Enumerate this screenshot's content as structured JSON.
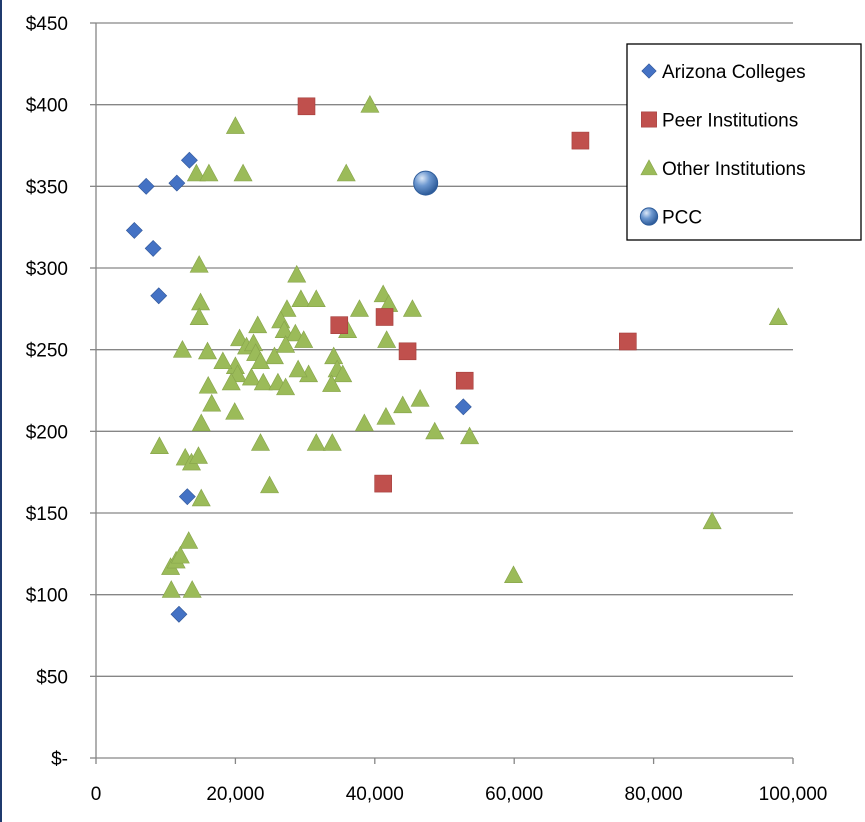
{
  "chart_data": {
    "type": "scatter",
    "title": "",
    "xlabel": "",
    "ylabel": "",
    "xlim": [
      0,
      100000
    ],
    "ylim": [
      0,
      450
    ],
    "x_ticks": [
      0,
      20000,
      40000,
      60000,
      80000,
      100000
    ],
    "x_tick_labels": [
      "0",
      "20,000",
      "40,000",
      "60,000",
      "80,000",
      "100,000"
    ],
    "y_ticks": [
      0,
      50,
      100,
      150,
      200,
      250,
      300,
      350,
      400,
      450
    ],
    "y_tick_labels": [
      "$-",
      "$50",
      "$100",
      "$150",
      "$200",
      "$250",
      "$300",
      "$350",
      "$400",
      "$450"
    ],
    "grid": "horizontal",
    "legend_position": "top-right",
    "series": [
      {
        "name": "Arizona Colleges",
        "marker": "diamond",
        "color": "#4472c4",
        "points": [
          [
            5500,
            323
          ],
          [
            7200,
            350
          ],
          [
            8200,
            312
          ],
          [
            9000,
            283
          ],
          [
            11600,
            352
          ],
          [
            13400,
            366
          ],
          [
            13100,
            160
          ],
          [
            11900,
            88
          ],
          [
            52700,
            215
          ]
        ]
      },
      {
        "name": "Peer Institutions",
        "marker": "square",
        "color": "#c0504d",
        "points": [
          [
            30200,
            399
          ],
          [
            69500,
            378
          ],
          [
            34900,
            265
          ],
          [
            41400,
            270
          ],
          [
            44700,
            249
          ],
          [
            76300,
            255
          ],
          [
            52900,
            231
          ],
          [
            41200,
            168
          ]
        ]
      },
      {
        "name": "Other Institutions",
        "marker": "triangle",
        "color": "#9bbb59",
        "points": [
          [
            20000,
            387
          ],
          [
            39300,
            400
          ],
          [
            14400,
            358
          ],
          [
            16200,
            358
          ],
          [
            21100,
            358
          ],
          [
            35900,
            358
          ],
          [
            14800,
            302
          ],
          [
            28800,
            296
          ],
          [
            15000,
            279
          ],
          [
            14800,
            270
          ],
          [
            29400,
            281
          ],
          [
            31600,
            281
          ],
          [
            27400,
            275
          ],
          [
            37800,
            275
          ],
          [
            41200,
            284
          ],
          [
            42000,
            278
          ],
          [
            45400,
            275
          ],
          [
            23200,
            265
          ],
          [
            26500,
            268
          ],
          [
            27000,
            262
          ],
          [
            28600,
            260
          ],
          [
            29800,
            256
          ],
          [
            36100,
            262
          ],
          [
            41700,
            256
          ],
          [
            20600,
            257
          ],
          [
            21600,
            252
          ],
          [
            22600,
            254
          ],
          [
            12400,
            250
          ],
          [
            16000,
            249
          ],
          [
            22900,
            248
          ],
          [
            25600,
            246
          ],
          [
            20000,
            240
          ],
          [
            18200,
            243
          ],
          [
            23600,
            243
          ],
          [
            27200,
            253
          ],
          [
            34100,
            246
          ],
          [
            34600,
            238
          ],
          [
            35400,
            235
          ],
          [
            30500,
            235
          ],
          [
            29000,
            238
          ],
          [
            20300,
            235
          ],
          [
            22300,
            233
          ],
          [
            19400,
            230
          ],
          [
            16100,
            228
          ],
          [
            24000,
            230
          ],
          [
            26100,
            230
          ],
          [
            27200,
            227
          ],
          [
            33800,
            229
          ],
          [
            16600,
            217
          ],
          [
            19900,
            212
          ],
          [
            15100,
            205
          ],
          [
            38500,
            205
          ],
          [
            41600,
            209
          ],
          [
            44000,
            216
          ],
          [
            46500,
            220
          ],
          [
            48600,
            200
          ],
          [
            53600,
            197
          ],
          [
            23600,
            193
          ],
          [
            31600,
            193
          ],
          [
            33900,
            193
          ],
          [
            9100,
            191
          ],
          [
            12800,
            184
          ],
          [
            13700,
            181
          ],
          [
            14700,
            185
          ],
          [
            24900,
            167
          ],
          [
            15100,
            159
          ],
          [
            13300,
            133
          ],
          [
            10700,
            117
          ],
          [
            11500,
            121
          ],
          [
            12100,
            124
          ],
          [
            10800,
            103
          ],
          [
            13800,
            103
          ],
          [
            59900,
            112
          ],
          [
            88400,
            145
          ],
          [
            97900,
            270
          ]
        ]
      },
      {
        "name": "PCC",
        "marker": "circle",
        "color": "#4f81bd",
        "points": [
          [
            47300,
            352
          ]
        ]
      }
    ]
  },
  "legend": {
    "items": [
      {
        "label": "Arizona Colleges",
        "marker": "diamond",
        "color": "#4472c4"
      },
      {
        "label": "Peer Institutions",
        "marker": "square",
        "color": "#c0504d"
      },
      {
        "label": "Other Institutions",
        "marker": "triangle",
        "color": "#9bbb59"
      },
      {
        "label": "PCC",
        "marker": "circle",
        "color": "#4f81bd"
      }
    ]
  },
  "colors": {
    "gridline": "#868686",
    "axis": "#868686",
    "left_edge": "#1f3a6e"
  }
}
